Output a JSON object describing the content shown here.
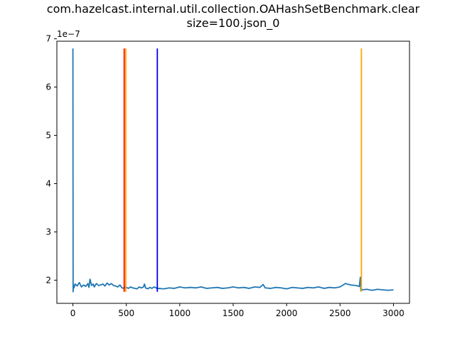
{
  "chart_data": {
    "type": "line",
    "title_line1": "com.hazelcast.internal.util.collection.OAHashSetBenchmark.clear",
    "title_line2": "size=100.json_0",
    "xlabel": "",
    "ylabel": "",
    "y_offset_label": "1e−7",
    "xlim": [
      -150,
      3150
    ],
    "ylim": [
      1.52,
      6.95
    ],
    "x_ticks": [
      0,
      500,
      1000,
      1500,
      2000,
      2500,
      3000
    ],
    "y_ticks": [
      2,
      3,
      4,
      5,
      6,
      7
    ],
    "grid": false,
    "colors": {
      "series": "#1f77b4",
      "red": "#ff0000",
      "blue": "#0000ff",
      "orange": "#ffa500"
    },
    "series": [
      {
        "color_key": "series",
        "x": [
          0,
          2,
          5,
          10,
          20,
          40,
          60,
          80,
          100,
          120,
          140,
          150,
          160,
          175,
          190,
          200,
          220,
          240,
          260,
          280,
          300,
          320,
          340,
          360,
          380,
          400,
          420,
          440,
          460,
          480,
          490,
          500,
          520,
          540,
          560,
          580,
          600,
          620,
          640,
          660,
          670,
          680,
          700,
          720,
          740,
          760,
          780,
          790,
          800,
          850,
          900,
          950,
          1000,
          1050,
          1100,
          1150,
          1200,
          1250,
          1300,
          1350,
          1400,
          1450,
          1500,
          1550,
          1600,
          1650,
          1700,
          1750,
          1780,
          1800,
          1850,
          1900,
          1950,
          2000,
          2050,
          2100,
          2150,
          2200,
          2250,
          2300,
          2350,
          2400,
          2450,
          2500,
          2550,
          2600,
          2650,
          2680,
          2690,
          2695,
          2700,
          2710,
          2750,
          2800,
          2850,
          2900,
          2950,
          3000
        ],
        "y": [
          6.8,
          1.76,
          1.9,
          1.84,
          1.92,
          1.88,
          1.95,
          1.86,
          1.9,
          1.87,
          1.93,
          1.85,
          2.02,
          1.89,
          1.92,
          1.86,
          1.93,
          1.89,
          1.9,
          1.92,
          1.88,
          1.94,
          1.9,
          1.93,
          1.89,
          1.88,
          1.86,
          1.9,
          1.84,
          1.83,
          1.86,
          1.85,
          1.83,
          1.86,
          1.84,
          1.83,
          1.82,
          1.86,
          1.84,
          1.86,
          1.92,
          1.84,
          1.82,
          1.85,
          1.83,
          1.86,
          1.84,
          1.82,
          1.83,
          1.82,
          1.84,
          1.83,
          1.86,
          1.84,
          1.85,
          1.84,
          1.86,
          1.83,
          1.84,
          1.85,
          1.83,
          1.84,
          1.86,
          1.84,
          1.85,
          1.83,
          1.86,
          1.85,
          1.91,
          1.84,
          1.83,
          1.85,
          1.84,
          1.82,
          1.85,
          1.84,
          1.83,
          1.85,
          1.84,
          1.86,
          1.83,
          1.85,
          1.84,
          1.86,
          1.93,
          1.9,
          1.89,
          1.87,
          2.06,
          1.78,
          1.82,
          1.8,
          1.81,
          1.79,
          1.81,
          1.8,
          1.79,
          1.8
        ]
      }
    ],
    "vlines": [
      {
        "x": 480,
        "color_key": "red",
        "y0": 1.76,
        "y1": 6.8
      },
      {
        "x": 495,
        "color_key": "orange",
        "y0": 1.76,
        "y1": 6.8
      },
      {
        "x": 790,
        "color_key": "blue",
        "y0": 1.76,
        "y1": 6.8
      },
      {
        "x": 2700,
        "color_key": "orange",
        "y0": 1.76,
        "y1": 6.8
      }
    ]
  }
}
